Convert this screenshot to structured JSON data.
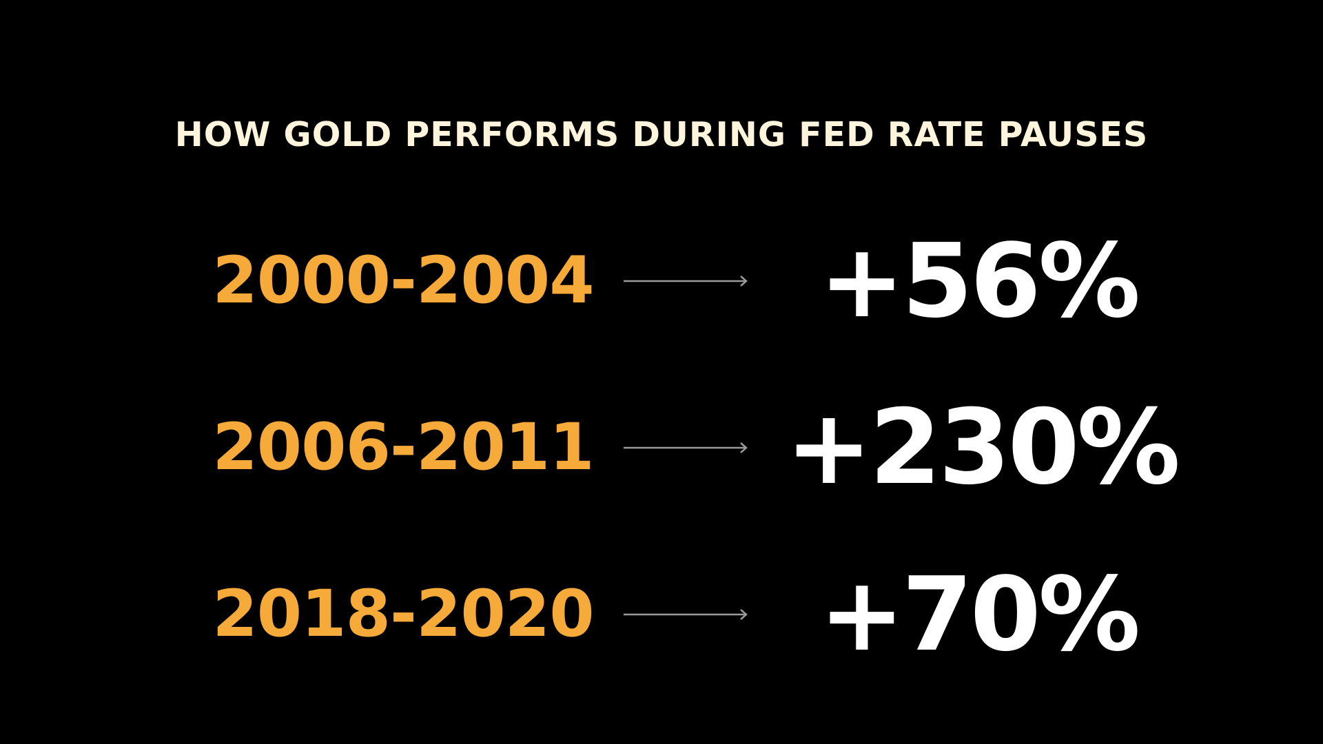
{
  "title": "HOW GOLD PERFORMS DURING FED RATE PAUSES",
  "colors": {
    "background": "#000000",
    "title": "#fff4dc",
    "period": "#f5aa3a",
    "gain": "#ffffff",
    "arrow": "#9a9a9a"
  },
  "rows": [
    {
      "period": "2000-2004",
      "arrow_icon": "right-arrow-icon",
      "gain": "+56%"
    },
    {
      "period": "2006-2011",
      "arrow_icon": "right-arrow-icon",
      "gain": "+230%"
    },
    {
      "period": "2018-2020",
      "arrow_icon": "right-arrow-icon",
      "gain": "+70%"
    }
  ]
}
